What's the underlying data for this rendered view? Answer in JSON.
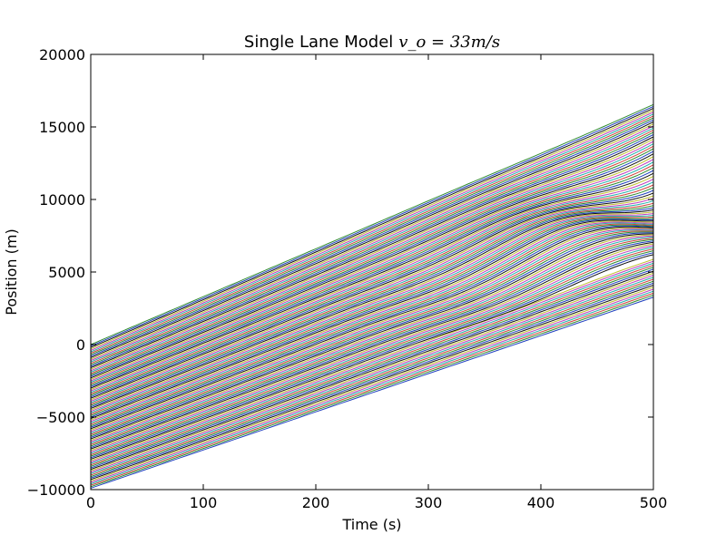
{
  "chart_data": {
    "type": "line",
    "title": "Single Lane Model",
    "title_math": "v_o = 33m/s",
    "xlabel": "Time (s)",
    "ylabel": "Position (m)",
    "xlim": [
      0,
      500
    ],
    "ylim": [
      -10000,
      20000
    ],
    "x_ticks": [
      0,
      100,
      200,
      300,
      400,
      500
    ],
    "x_tick_labels": [
      "0",
      "100",
      "200",
      "300",
      "400",
      "500"
    ],
    "y_ticks": [
      -10000,
      -5000,
      0,
      5000,
      10000,
      15000,
      20000
    ],
    "y_tick_labels": [
      "−10000",
      "−5000",
      "0",
      "5000",
      "10000",
      "15000",
      "20000"
    ],
    "grid": false,
    "legend": "none",
    "series_count": 100,
    "series_start_position_range": [
      -9900,
      0
    ],
    "series_end_position_range": [
      3250,
      16500
    ],
    "speed_m_per_s": 33,
    "series_colors": [
      "#1f3fbf",
      "#2e8b2e",
      "#d0403c",
      "#20b2aa",
      "#bf3fbf",
      "#bfbf2f",
      "#111111"
    ]
  }
}
